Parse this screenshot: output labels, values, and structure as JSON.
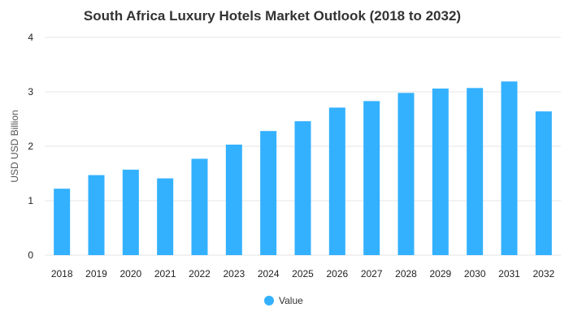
{
  "chart_data": {
    "type": "bar",
    "title": "South Africa Luxury Hotels Market Outlook (2018 to 2032)",
    "xlabel": "",
    "ylabel": "USD USD Billion",
    "ylim": [
      0,
      4
    ],
    "yticks": [
      "0",
      "1",
      "2",
      "3",
      "4"
    ],
    "grid": true,
    "legend_position": "bottom",
    "categories": [
      "2018",
      "2019",
      "2020",
      "2021",
      "2022",
      "2023",
      "2024",
      "2025",
      "2026",
      "2027",
      "2028",
      "2029",
      "2030",
      "2031",
      "2032"
    ],
    "series": [
      {
        "name": "Value",
        "color": "#33b1ff",
        "values": [
          1.22,
          1.47,
          1.57,
          1.41,
          1.77,
          2.03,
          2.28,
          2.46,
          2.71,
          2.83,
          2.98,
          3.06,
          3.07,
          3.19,
          2.64
        ]
      }
    ]
  }
}
